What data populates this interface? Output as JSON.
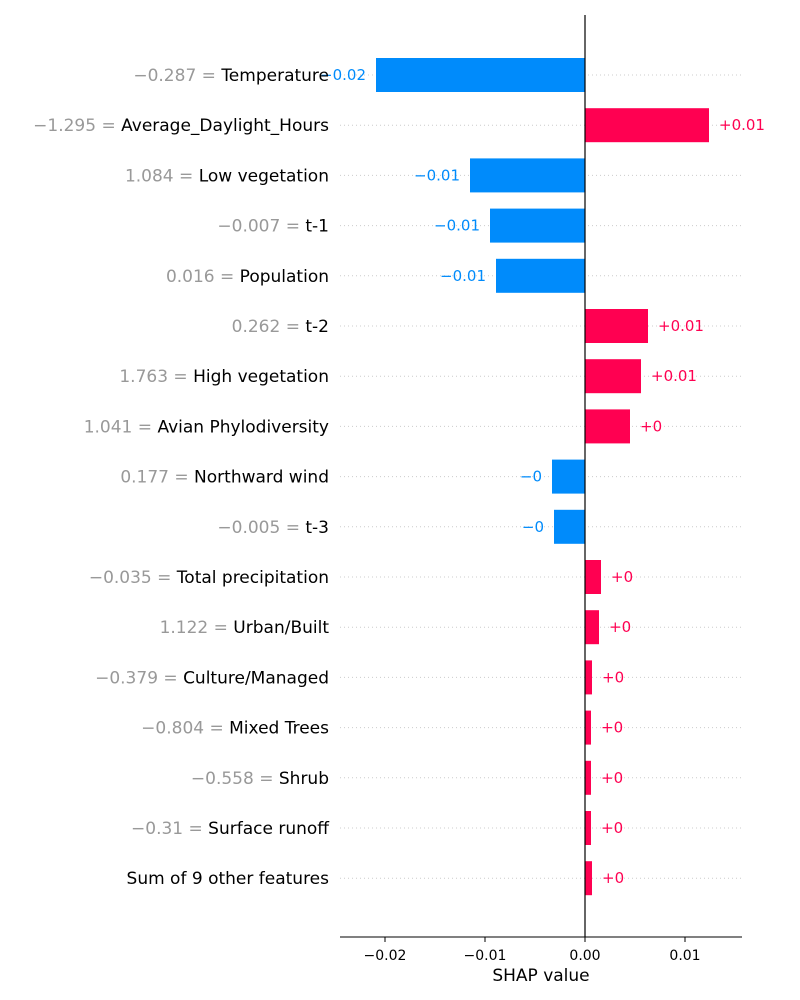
{
  "chart_data": {
    "type": "bar",
    "xlabel": "SHAP value",
    "xlim": [
      -0.0245,
      0.0157
    ],
    "xticks": [
      {
        "value": -0.02,
        "label": "−0.02"
      },
      {
        "value": -0.01,
        "label": "−0.01"
      },
      {
        "value": 0.0,
        "label": "0.00"
      },
      {
        "value": 0.01,
        "label": "0.01"
      }
    ],
    "grid": "dotted horizontal guide lines per feature",
    "colors": {
      "positive": "#ff0051",
      "negative": "#008bfb",
      "feature_value": "#999999",
      "feature_name": "#000000"
    },
    "features": [
      {
        "value_text": "−0.287 =",
        "name": "Temperature",
        "shap": -0.0209,
        "label": "−0.02"
      },
      {
        "value_text": "−1.295 =",
        "name": "Average_Daylight_Hours",
        "shap": 0.0124,
        "label": "+0.01"
      },
      {
        "value_text": "1.084 =",
        "name": "Low vegetation",
        "shap": -0.0115,
        "label": "−0.01"
      },
      {
        "value_text": "−0.007 =",
        "name": "t-1",
        "shap": -0.0095,
        "label": "−0.01"
      },
      {
        "value_text": "0.016 =",
        "name": "Population",
        "shap": -0.0089,
        "label": "−0.01"
      },
      {
        "value_text": "0.262 =",
        "name": "t-2",
        "shap": 0.0063,
        "label": "+0.01"
      },
      {
        "value_text": "1.763 =",
        "name": "High vegetation",
        "shap": 0.0056,
        "label": "+0.01"
      },
      {
        "value_text": "1.041 =",
        "name": "Avian Phylodiversity",
        "shap": 0.0045,
        "label": "+0"
      },
      {
        "value_text": "0.177 =",
        "name": "Northward wind",
        "shap": -0.0033,
        "label": "−0"
      },
      {
        "value_text": "−0.005 =",
        "name": "t-3",
        "shap": -0.0031,
        "label": "−0"
      },
      {
        "value_text": "−0.035 =",
        "name": "Total precipitation",
        "shap": 0.0016,
        "label": "+0"
      },
      {
        "value_text": "1.122 =",
        "name": "Urban/Built",
        "shap": 0.0014,
        "label": "+0"
      },
      {
        "value_text": "−0.379 =",
        "name": "Culture/Managed",
        "shap": 0.0007,
        "label": "+0"
      },
      {
        "value_text": "−0.804 =",
        "name": "Mixed Trees",
        "shap": 0.0006,
        "label": "+0"
      },
      {
        "value_text": "−0.558 =",
        "name": "Shrub",
        "shap": 0.0006,
        "label": "+0"
      },
      {
        "value_text": "−0.31 =",
        "name": "Surface runoff",
        "shap": 0.0006,
        "label": "+0"
      },
      {
        "value_text": "",
        "name": "Sum of 9 other features",
        "shap": 0.0007,
        "label": "+0"
      }
    ]
  }
}
